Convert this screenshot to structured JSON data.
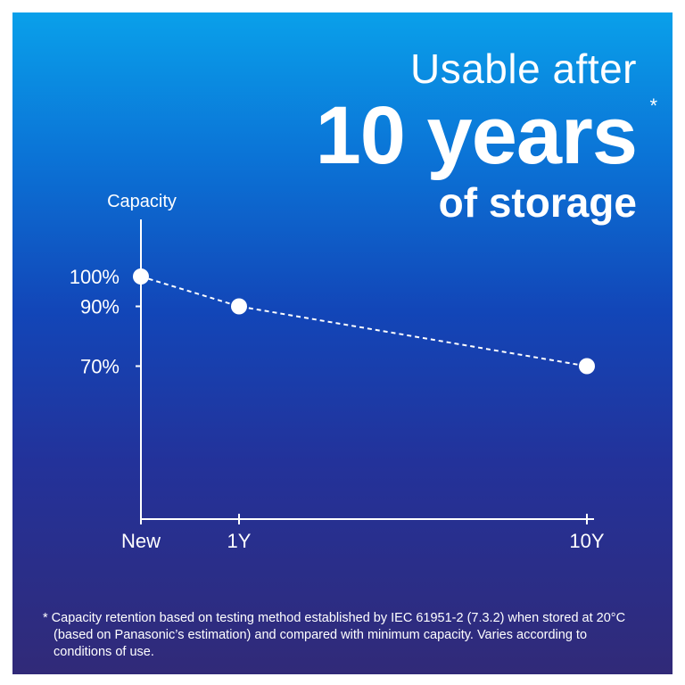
{
  "headline": {
    "line1": "Usable after",
    "line2": "10 years",
    "asterisk": "*",
    "line3": "of storage"
  },
  "chart_data": {
    "type": "line",
    "ylabel": "Capacity",
    "categories": [
      "New",
      "1Y",
      "10Y"
    ],
    "x": [
      0,
      1,
      10
    ],
    "values": [
      100,
      90,
      70
    ],
    "ytick_labels": [
      "100%",
      "90%",
      "70%"
    ],
    "ylim": [
      50,
      100
    ],
    "line_style": "dashed",
    "grid": false,
    "colors": {
      "line": "#ffffff",
      "marker": "#ffffff"
    }
  },
  "footnote": "* Capacity retention based on testing method established by IEC 61951-2 (7.3.2) when stored at 20°C (based on Panasonic’s estimation) and compared with minimum capacity. Varies according to conditions of use.",
  "colors": {
    "background_top": "#0aa0ea",
    "background_bottom": "#312a78",
    "text": "#ffffff"
  }
}
